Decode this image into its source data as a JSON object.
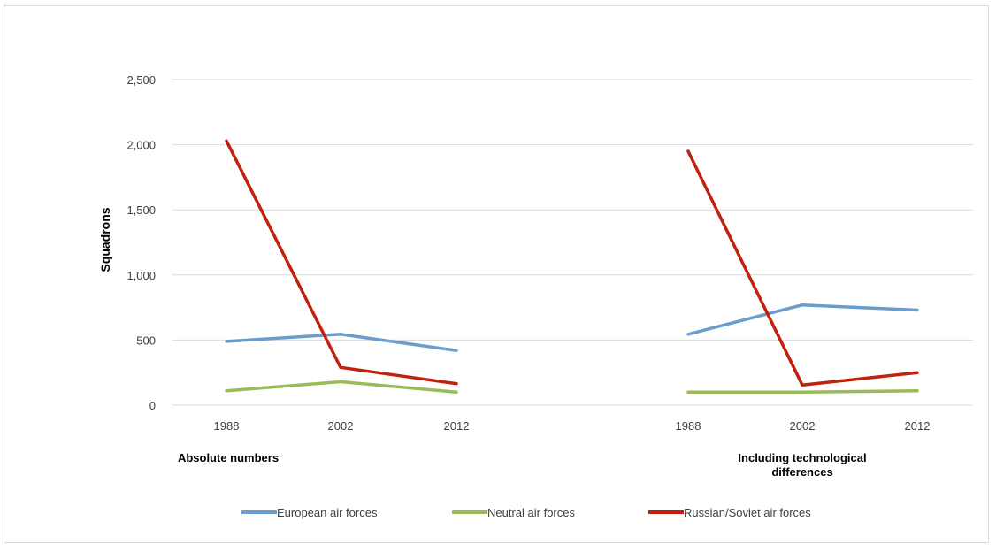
{
  "chart_data": {
    "type": "line",
    "ylabel": "Squadrons",
    "ylim": [
      0,
      2500
    ],
    "yticks": [
      "0",
      "500",
      "1,000",
      "1,500",
      "2,000",
      "2,500"
    ],
    "ytick_values": [
      0,
      500,
      1000,
      1500,
      2000,
      2500
    ],
    "grid": true,
    "legend_position": "bottom",
    "groups": [
      {
        "label": "Absolute numbers",
        "label_lines": [
          "Absolute numbers"
        ],
        "categories": [
          "1988",
          "2002",
          "2012"
        ],
        "series": [
          {
            "name": "European air forces",
            "color": "#6a9ccc",
            "values": [
              490,
              545,
              420
            ]
          },
          {
            "name": "Neutral air forces",
            "color": "#9bbb59",
            "values": [
              110,
              180,
              100
            ]
          },
          {
            "name": "Russian/Soviet air forces",
            "color": "#c0220e",
            "values": [
              2030,
              290,
              165
            ]
          }
        ]
      },
      {
        "label": "Including technological differences",
        "label_lines": [
          "Including technological",
          "differences"
        ],
        "categories": [
          "1988",
          "2002",
          "2012"
        ],
        "series": [
          {
            "name": "European air forces",
            "color": "#6a9ccc",
            "values": [
              545,
              770,
              730
            ]
          },
          {
            "name": "Neutral air forces",
            "color": "#9bbb59",
            "values": [
              100,
              100,
              110
            ]
          },
          {
            "name": "Russian/Soviet air forces",
            "color": "#c0220e",
            "values": [
              1950,
              155,
              250
            ]
          }
        ]
      }
    ],
    "legend": [
      {
        "name": "European air forces",
        "color": "#6a9ccc"
      },
      {
        "name": "Neutral air forces",
        "color": "#9bbb59"
      },
      {
        "name": "Russian/Soviet air forces",
        "color": "#c0220e"
      }
    ]
  }
}
